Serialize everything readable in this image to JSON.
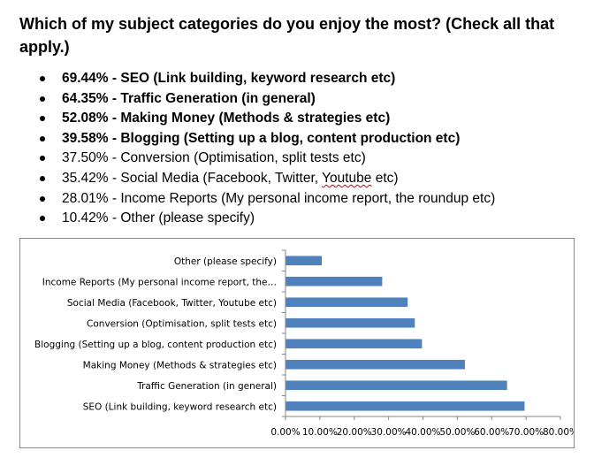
{
  "question": "Which of my subject categories do you enjoy the most? (Check all that apply.)",
  "answers": [
    {
      "pct": "69.44%",
      "text": "SEO (Link building, keyword research etc)",
      "bold": true
    },
    {
      "pct": "64.35%",
      "text": "Traffic Generation (in general)",
      "bold": true
    },
    {
      "pct": "52.08%",
      "text": "Making Money (Methods & strategies etc)",
      "bold": true
    },
    {
      "pct": "39.58%",
      "text": "Blogging (Setting up a blog, content production etc)",
      "bold": true
    },
    {
      "pct": "37.50%",
      "text": "Conversion (Optimisation, split tests etc)",
      "bold": false
    },
    {
      "pct": "35.42%",
      "text": "Social Media (Facebook, Twitter, Youtube etc)",
      "bold": false
    },
    {
      "pct": "28.01%",
      "text": "Income Reports (My personal income report, the roundup etc)",
      "bold": false
    },
    {
      "pct": "10.42%",
      "text": "Other (please specify)",
      "bold": false
    }
  ],
  "chart_data": {
    "type": "bar",
    "orientation": "horizontal",
    "categories": [
      "SEO (Link building, keyword research etc)",
      "Traffic Generation (in general)",
      "Making Money (Methods & strategies etc)",
      "Blogging (Setting up a blog, content production etc)",
      "Conversion (Optimisation, split tests etc)",
      "Social Media (Facebook, Twitter, Youtube etc)",
      "Income Reports (My personal income re…",
      "Other (please specify)"
    ],
    "category_labels": [
      "SEO (Link building, keyword research etc)",
      "Traffic Generation (in general)",
      "Making Money (Methods & strategies etc)",
      "Blogging (Setting up a blog, content production etc)",
      "Conversion (Optimisation, split tests etc)",
      "Social Media (Facebook, Twitter, Youtube etc)",
      "Income Reports (My personal income report, the…",
      "Other (please specify)"
    ],
    "values": [
      0.6944,
      0.6435,
      0.5208,
      0.3958,
      0.375,
      0.3542,
      0.2801,
      0.1042
    ],
    "xlim": [
      0,
      0.8
    ],
    "xticks": [
      0,
      0.1,
      0.2,
      0.3,
      0.4,
      0.5,
      0.6,
      0.7,
      0.8
    ],
    "xtick_labels": [
      "0.00%",
      "10.00%",
      "20.00%",
      "30.00%",
      "40.00%",
      "50.00%",
      "60.00%",
      "70.00%",
      "80.00%"
    ],
    "bar_color": "#4f81bd",
    "title": "",
    "xlabel": "",
    "ylabel": "",
    "grid": false,
    "legend": "none"
  }
}
